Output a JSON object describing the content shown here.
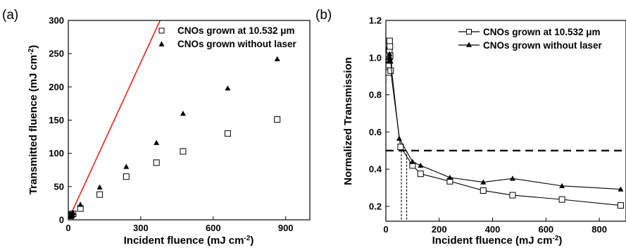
{
  "chart_data": [
    {
      "panel_label": "(a)",
      "type": "scatter",
      "xlabel": "Incident fluence (mJ cm",
      "ylabel": "Transmitted fluence (mJ cm",
      "xlim": [
        0,
        1000
      ],
      "ylim": [
        0,
        300
      ],
      "xticks": [
        0,
        300,
        600,
        900
      ],
      "yticks": [
        0,
        50,
        100,
        150,
        200,
        250,
        300
      ],
      "legend_position": "top-right",
      "series": [
        {
          "name": "CNOs grown at 10.532 μm",
          "marker": "open-square",
          "x": [
            8,
            10,
            12,
            15,
            18,
            20,
            50,
            130,
            240,
            365,
            475,
            660,
            865
          ],
          "y": [
            4,
            6,
            7,
            8,
            9,
            9,
            17,
            38,
            65,
            86,
            103,
            130,
            151
          ]
        },
        {
          "name": "CNOs grown without laser",
          "marker": "filled-triangle",
          "x": [
            8,
            10,
            12,
            15,
            18,
            20,
            50,
            130,
            240,
            365,
            475,
            660,
            865
          ],
          "y": [
            5,
            6,
            8,
            9,
            10,
            11,
            23,
            49,
            80,
            116,
            160,
            198,
            242
          ]
        }
      ],
      "reference_line": {
        "color": "#e8241c",
        "x": [
          0,
          380
        ],
        "y": [
          0,
          300
        ]
      }
    },
    {
      "panel_label": "(b)",
      "type": "line",
      "xlabel": "Incident fluence (mJ cm",
      "ylabel": "Normalized Transmission",
      "xlim": [
        0,
        900
      ],
      "ylim": [
        0.12,
        1.2
      ],
      "xticks": [
        0,
        200,
        400,
        600,
        800
      ],
      "yticks": [
        0.2,
        0.4,
        0.6,
        0.8,
        1.0,
        1.2
      ],
      "legend_position": "top-right",
      "series": [
        {
          "name": "CNOs grown at 10.532 μm",
          "marker": "open-square",
          "x": [
            10,
            11,
            12,
            13,
            14,
            15,
            16,
            18,
            55,
            100,
            130,
            240,
            365,
            475,
            660,
            880
          ],
          "y": [
            0.92,
            0.96,
            0.99,
            1.04,
            1.09,
            1.06,
            1.01,
            0.93,
            0.52,
            0.42,
            0.375,
            0.335,
            0.285,
            0.26,
            0.237,
            0.205
          ]
        },
        {
          "name": "CNOs grown without laser",
          "marker": "filled-triangle",
          "x": [
            10,
            12,
            14,
            16,
            18,
            50,
            100,
            130,
            240,
            365,
            475,
            660,
            880
          ],
          "y": [
            0.98,
            1.0,
            1.02,
            1.0,
            0.98,
            0.565,
            0.44,
            0.42,
            0.355,
            0.33,
            0.35,
            0.31,
            0.292
          ]
        }
      ],
      "threshold_line": {
        "style": "dashed",
        "y": 0.5
      },
      "guide_lines": {
        "style": "dotted",
        "x": [
          58,
          78
        ]
      }
    }
  ]
}
